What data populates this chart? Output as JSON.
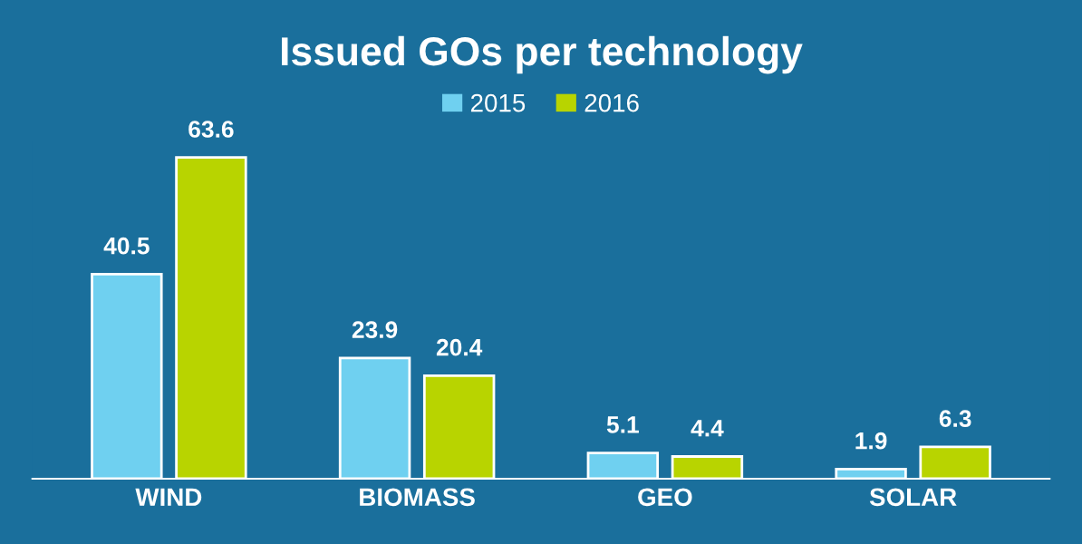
{
  "chart_data": {
    "type": "bar",
    "title": "Issued GOs per technology",
    "categories": [
      "WIND",
      "BIOMASS",
      "GEO",
      "SOLAR"
    ],
    "series": [
      {
        "name": "2015",
        "color": "#6fd0f0",
        "values": [
          40.5,
          23.9,
          5.1,
          1.9
        ]
      },
      {
        "name": "2016",
        "color": "#b8d400",
        "values": [
          63.6,
          20.4,
          4.4,
          6.3
        ]
      }
    ],
    "data_labels": true,
    "legend": "top",
    "grid": false,
    "tick_labels": "x"
  }
}
